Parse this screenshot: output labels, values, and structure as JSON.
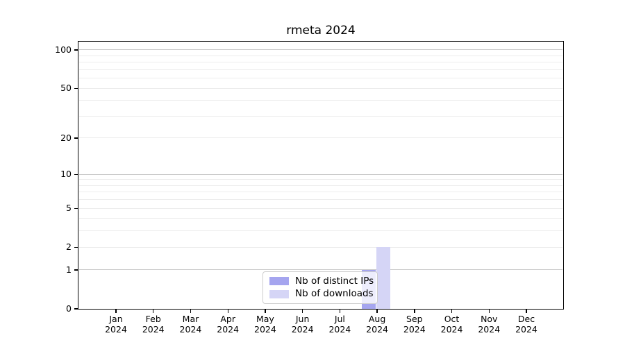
{
  "chart_data": {
    "type": "bar",
    "title": "rmeta 2024",
    "categories": [
      "Jan 2024",
      "Feb 2024",
      "Mar 2024",
      "Apr 2024",
      "May 2024",
      "Jun 2024",
      "Jul 2024",
      "Aug 2024",
      "Sep 2024",
      "Oct 2024",
      "Nov 2024",
      "Dec 2024"
    ],
    "series": [
      {
        "name": "Nb of distinct IPs",
        "color": "#a5a5ef",
        "values": [
          0,
          0,
          0,
          0,
          0,
          0,
          0,
          1,
          0,
          0,
          0,
          0
        ]
      },
      {
        "name": "Nb of downloads",
        "color": "#d5d5f6",
        "values": [
          0,
          0,
          0,
          0,
          0,
          0,
          0,
          2,
          0,
          0,
          0,
          0
        ]
      }
    ],
    "xlabel": "",
    "ylabel": "",
    "yaxis": {
      "scale": "log1p",
      "ylim": [
        0,
        100
      ],
      "ticks": [
        0,
        1,
        2,
        5,
        10,
        20,
        50,
        100
      ],
      "decade_gridlines": [
        1,
        10,
        100
      ],
      "minor_gridlines": [
        2,
        3,
        4,
        5,
        6,
        7,
        8,
        9,
        20,
        30,
        40,
        50,
        60,
        70,
        80,
        90
      ]
    },
    "legend": {
      "position": "lower-center",
      "entries": [
        "Nb of distinct IPs",
        "Nb of downloads"
      ]
    },
    "grid": "on",
    "colors": {
      "decade_grid": "#c9c9c9",
      "minor_grid": "#ececec",
      "axis": "#000000",
      "background": "#ffffff"
    }
  }
}
